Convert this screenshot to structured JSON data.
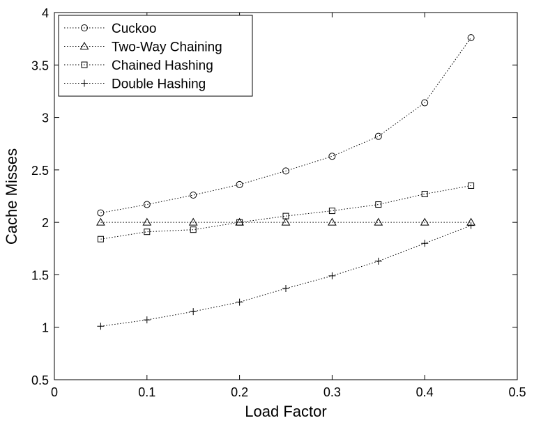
{
  "chart_data": {
    "type": "line",
    "title": "",
    "xlabel": "Load Factor",
    "ylabel": "Cache Misses",
    "xlim": [
      0,
      0.5
    ],
    "ylim": [
      0.5,
      4
    ],
    "xticks": [
      "0",
      "0.1",
      "0.2",
      "0.3",
      "0.4",
      "0.5"
    ],
    "yticks": [
      "0.5",
      "1",
      "1.5",
      "2",
      "2.5",
      "3",
      "3.5",
      "4"
    ],
    "grid": false,
    "legend_position": "top-left",
    "x": [
      0.05,
      0.1,
      0.15,
      0.2,
      0.25,
      0.3,
      0.35,
      0.4,
      0.45
    ],
    "series": [
      {
        "name": "Cuckoo",
        "marker": "circle",
        "values": [
          2.09,
          2.17,
          2.26,
          2.36,
          2.49,
          2.63,
          2.82,
          3.14,
          3.76
        ]
      },
      {
        "name": "Two-Way Chaining",
        "marker": "triangle",
        "values": [
          2.0,
          2.0,
          2.0,
          2.0,
          2.0,
          2.0,
          2.0,
          2.0,
          2.0
        ]
      },
      {
        "name": "Chained Hashing",
        "marker": "square",
        "values": [
          1.84,
          1.91,
          1.93,
          2.0,
          2.06,
          2.11,
          2.17,
          2.27,
          2.35
        ]
      },
      {
        "name": "Double Hashing",
        "marker": "plus",
        "values": [
          1.01,
          1.07,
          1.15,
          1.24,
          1.37,
          1.49,
          1.63,
          1.8,
          1.97
        ]
      }
    ]
  }
}
